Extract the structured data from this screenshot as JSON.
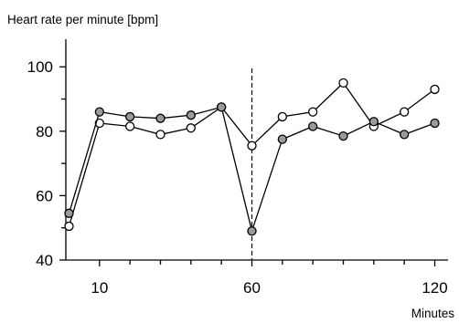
{
  "chart_data": {
    "type": "line",
    "ylabel": "Heart rate per minute [bpm]",
    "xlabel": "Minutes",
    "xlim": [
      0,
      125
    ],
    "ylim": [
      40,
      108
    ],
    "x_ticks_labeled": [
      10,
      60,
      120
    ],
    "x_ticks_minor": [
      20,
      30,
      40,
      50,
      70,
      80,
      90,
      100,
      110
    ],
    "y_ticks_labeled": [
      40,
      60,
      80,
      100
    ],
    "y_ticks_minor": [
      50,
      70,
      90
    ],
    "reference_line": {
      "x": 60,
      "style": "dashed"
    },
    "grid": false,
    "legend": "none",
    "series": [
      {
        "marker": "open-circle",
        "fill": "#ffffff",
        "x": [
          0,
          10,
          20,
          30,
          40,
          50,
          60,
          70,
          80,
          90,
          100,
          110,
          120
        ],
        "y": [
          50.5,
          82.5,
          81.5,
          79,
          81,
          87.5,
          75.5,
          84.5,
          86,
          95,
          81.5,
          86,
          93
        ]
      },
      {
        "marker": "filled-circle",
        "fill": "#9a9a9a",
        "x": [
          0,
          10,
          20,
          30,
          40,
          50,
          60,
          70,
          80,
          90,
          100,
          110,
          120
        ],
        "y": [
          54.5,
          86,
          84.5,
          84,
          85,
          87.5,
          49,
          77.5,
          81.5,
          78.5,
          83,
          79,
          82.5
        ]
      }
    ]
  }
}
